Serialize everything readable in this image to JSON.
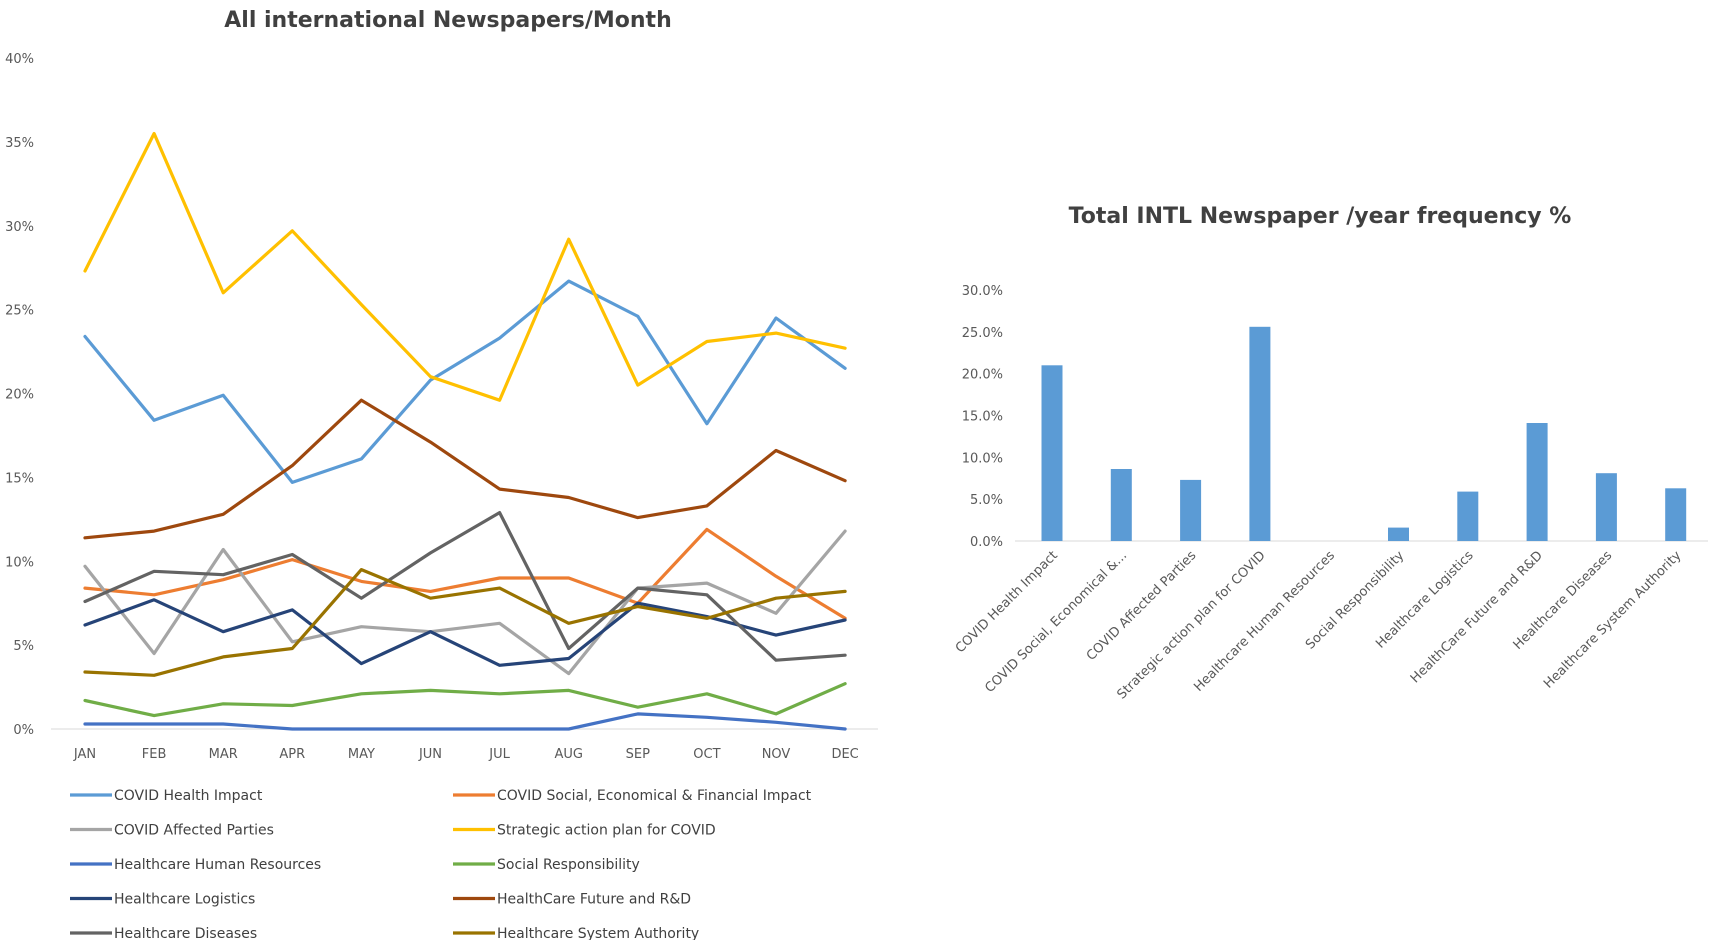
{
  "chart_data": [
    {
      "type": "line",
      "title": "All international Newspapers/Month",
      "xlabel": "",
      "ylabel": "",
      "ylim": [
        0,
        40
      ],
      "y_ticks": [
        "0%",
        "5%",
        "10%",
        "15%",
        "20%",
        "25%",
        "30%",
        "35%",
        "40%"
      ],
      "y_unit": "%",
      "categories": [
        "JAN",
        "FEB",
        "MAR",
        "APR",
        "MAY",
        "JUN",
        "JUL",
        "AUG",
        "SEP",
        "OCT",
        "NOV",
        "DEC"
      ],
      "grid": false,
      "legend_position": "bottom",
      "series": [
        {
          "name": "COVID Health Impact",
          "color": "#5b9bd5",
          "values": [
            23.4,
            18.4,
            19.9,
            14.7,
            16.1,
            20.8,
            23.3,
            26.7,
            24.6,
            18.2,
            24.5,
            21.5
          ]
        },
        {
          "name": "COVID Social, Economical & Financial Impact",
          "color": "#ed7d31",
          "values": [
            8.4,
            8.0,
            8.9,
            10.1,
            8.8,
            8.2,
            9.0,
            9.0,
            7.5,
            11.9,
            9.1,
            6.6
          ]
        },
        {
          "name": "COVID Affected Parties",
          "color": "#a5a5a5",
          "values": [
            9.7,
            4.5,
            10.7,
            5.2,
            6.1,
            5.8,
            6.3,
            3.3,
            8.4,
            8.7,
            6.9,
            11.8
          ]
        },
        {
          "name": "Strategic action plan for COVID",
          "color": "#ffc000",
          "values": [
            27.3,
            35.5,
            26.0,
            29.7,
            25.3,
            21.0,
            19.6,
            29.2,
            20.5,
            23.1,
            23.6,
            22.7
          ]
        },
        {
          "name": "Healthcare Human Resources",
          "color": "#4472c4",
          "values": [
            0.3,
            0.3,
            0.3,
            0.0,
            0.0,
            0.0,
            0.0,
            0.0,
            0.9,
            0.7,
            0.4,
            0.0
          ]
        },
        {
          "name": "Social Responsibility",
          "color": "#70ad47",
          "values": [
            1.7,
            0.8,
            1.5,
            1.4,
            2.1,
            2.3,
            2.1,
            2.3,
            1.3,
            2.1,
            0.9,
            2.7
          ]
        },
        {
          "name": "Healthcare Logistics",
          "color": "#264478",
          "values": [
            6.2,
            7.7,
            5.8,
            7.1,
            3.9,
            5.8,
            3.8,
            4.2,
            7.5,
            6.7,
            5.6,
            6.5
          ]
        },
        {
          "name": "HealthCare Future and R&D",
          "color": "#9e480e",
          "values": [
            11.4,
            11.8,
            12.8,
            15.7,
            19.6,
            17.1,
            14.3,
            13.8,
            12.6,
            13.3,
            16.6,
            14.8
          ]
        },
        {
          "name": "Healthcare Diseases",
          "color": "#636363",
          "values": [
            7.6,
            9.4,
            9.2,
            10.4,
            7.8,
            10.5,
            12.9,
            4.8,
            8.4,
            8.0,
            4.1,
            4.4
          ]
        },
        {
          "name": "Healthcare System Authority",
          "color": "#997300",
          "values": [
            3.4,
            3.2,
            4.3,
            4.8,
            9.5,
            7.8,
            8.4,
            6.3,
            7.3,
            6.6,
            7.8,
            8.2
          ]
        }
      ]
    },
    {
      "type": "bar",
      "title": "Total INTL Newspaper /year frequency %",
      "xlabel": "",
      "ylabel": "",
      "ylim": [
        0,
        30
      ],
      "y_ticks": [
        "0.0%",
        "5.0%",
        "10.0%",
        "15.0%",
        "20.0%",
        "25.0%",
        "30.0%"
      ],
      "y_unit": "%",
      "grid": false,
      "bar_color": "#5b9bd5",
      "categories": [
        "COVID Health Impact",
        "COVID Social, Economical &...",
        "COVID Affected Parties",
        "Strategic action plan for COVID",
        "Healthcare Human Resources",
        "Social Responsibility",
        "Healthcare Logistics",
        "HealthCare Future and R&D",
        "Healthcare Diseases",
        "Healthcare System Authority"
      ],
      "values": [
        21.0,
        8.6,
        7.3,
        25.6,
        0.0,
        1.6,
        5.9,
        14.1,
        8.1,
        6.3
      ]
    }
  ]
}
